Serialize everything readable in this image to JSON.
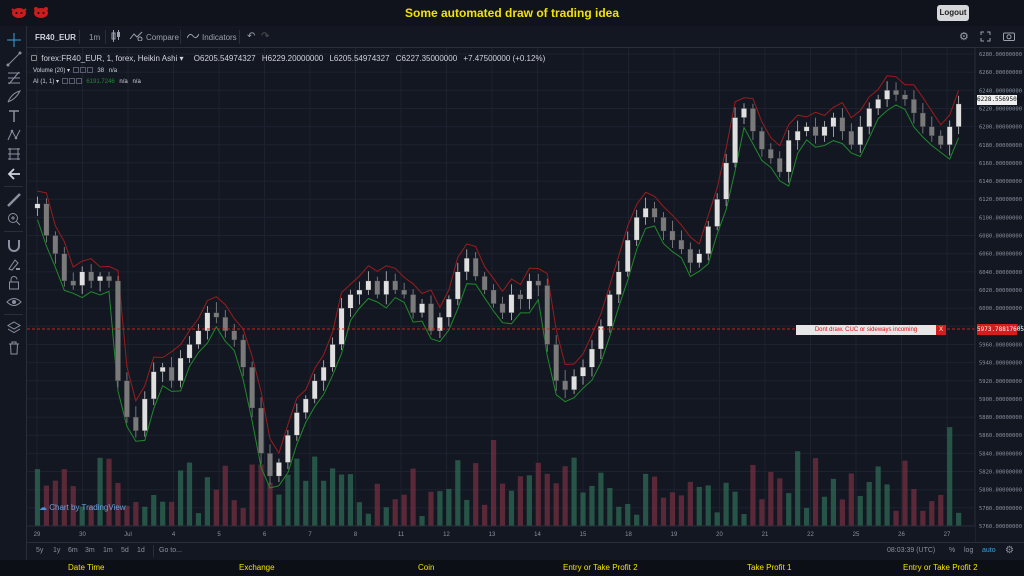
{
  "header": {
    "title": "Some automated draw of trading idea",
    "logout_label": "Logout"
  },
  "toolbar": {
    "symbol": "FR40_EUR",
    "interval": "1m",
    "compare_label": "Compare",
    "indicators_label": "Indicators"
  },
  "legend": {
    "main_title": "forex:FR40_EUR, 1, forex, Heikin Ashi",
    "open": "O6205.54974327",
    "high": "H6229.20000000",
    "low": "L6205.54974327",
    "close": "C6227.35000000",
    "change": "+7.47500000 (+0.12%)",
    "volume_label": "Volume (20)",
    "volume_value": "38",
    "volume_na": "n/a",
    "ai_label": "AI (1, 1)",
    "ai_value": "6191.7246",
    "ai_na1": "n/a",
    "ai_na2": "n/a"
  },
  "chart_data": {
    "type": "candlestick",
    "chart_style": "Heikin Ashi",
    "symbol": "FR40_EUR",
    "y_axis_ticks": [
      "6280.00000000",
      "6260.00000000",
      "6240.00000000",
      "6220.00000000",
      "6200.00000000",
      "6180.00000000",
      "6160.00000000",
      "6140.00000000",
      "6120.00000000",
      "6100.00000000",
      "6080.00000000",
      "6060.00000000",
      "6040.00000000",
      "6020.00000000",
      "6000.00000000",
      "5980.00000000",
      "5960.00000000",
      "5940.00000000",
      "5920.00000000",
      "5900.00000000",
      "5880.00000000",
      "5860.00000000",
      "5840.00000000",
      "5820.00000000",
      "5800.00000000",
      "5780.00000000",
      "5760.00000000"
    ],
    "ylim": [
      5760,
      6280
    ],
    "x_axis_ticks": [
      "29",
      "30",
      "Jul",
      "4",
      "5",
      "6",
      "7",
      "8",
      "11",
      "12",
      "13",
      "14",
      "15",
      "18",
      "19",
      "20",
      "21",
      "22",
      "25",
      "26",
      "27"
    ],
    "current_price_label": "6228.55695000",
    "alert_line_price": 5973,
    "alert_price_label": "5973.78817605",
    "alert_text": "Dont draw. CUC or sideways incoming",
    "alert_close": "X",
    "closes": [
      6115,
      6080,
      6060,
      6030,
      6025,
      6040,
      6030,
      6035,
      6030,
      5920,
      5880,
      5865,
      5900,
      5930,
      5935,
      5920,
      5945,
      5960,
      5975,
      5995,
      5990,
      5975,
      5965,
      5935,
      5890,
      5840,
      5815,
      5830,
      5860,
      5885,
      5900,
      5920,
      5935,
      5960,
      6000,
      6015,
      6020,
      6030,
      6015,
      6030,
      6020,
      6015,
      5995,
      6005,
      5975,
      5990,
      6010,
      6040,
      6055,
      6035,
      6020,
      6005,
      5995,
      6015,
      6010,
      6030,
      6025,
      5960,
      5920,
      5910,
      5925,
      5935,
      5955,
      5980,
      6015,
      6040,
      6075,
      6100,
      6110,
      6100,
      6085,
      6075,
      6065,
      6050,
      6060,
      6090,
      6120,
      6160,
      6210,
      6220,
      6195,
      6175,
      6165,
      6150,
      6185,
      6195,
      6200,
      6190,
      6200,
      6210,
      6195,
      6180,
      6200,
      6220,
      6230,
      6240,
      6235,
      6230,
      6215,
      6200,
      6190,
      6180,
      6200,
      6225
    ]
  },
  "axis_labels": {
    "last_tick_label": "6228.55695000",
    "alert_tick": "5973.78817605"
  },
  "watermark": "Chart by TradingView",
  "bottom": {
    "ranges": [
      "5y",
      "1y",
      "6m",
      "3m",
      "1m",
      "5d",
      "1d"
    ],
    "goto_label": "Go to...",
    "time": "08:03:39 (UTC)",
    "percent": "%",
    "log": "log",
    "auto": "auto"
  },
  "footer": {
    "items": [
      "Date Time",
      "Exchange",
      "Coin",
      "Entry or Take Profit 2",
      "Take Profit 1",
      "Entry or Take Profit 2"
    ]
  },
  "colors": {
    "up": "#26a69a",
    "down": "#ef5350",
    "candle_up": "#e0e0e0",
    "candle_down": "#7a7a7a",
    "support_line": "#1f8a2a",
    "resistance_line": "#9b1c1c",
    "accent": "#f3e300"
  },
  "icons": {
    "logos": [
      "bull-logo-icon",
      "bear-logo-icon"
    ],
    "left_tools": [
      "crosshair-icon",
      "trendline-icon",
      "fib-icon",
      "brush-icon",
      "text-icon",
      "pattern-icon",
      "measure-icon",
      "back-arrow-icon",
      "ruler-icon",
      "zoom-icon",
      "magnet-icon",
      "lock-drawing-icon",
      "lock-icon",
      "eye-icon",
      "layers-icon",
      "trash-icon"
    ]
  }
}
